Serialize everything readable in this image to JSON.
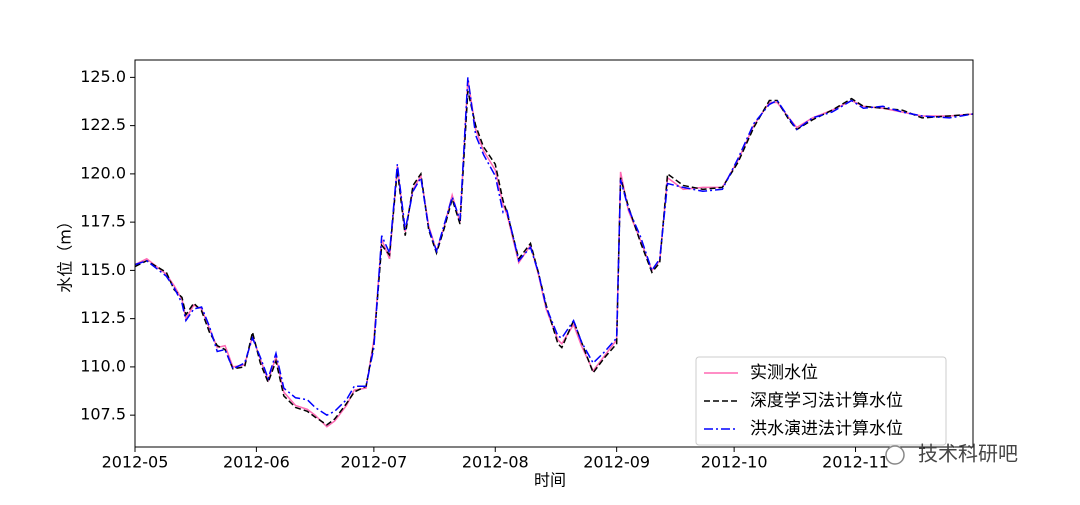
{
  "chart_data": {
    "type": "line",
    "xlabel": "时间",
    "ylabel": "水位（m）",
    "watermark": "技术科研吧",
    "x": [
      0,
      3,
      8,
      10,
      12,
      13,
      15,
      17,
      19,
      21,
      23,
      25,
      28,
      30,
      32,
      34,
      36,
      38,
      41,
      44,
      46,
      49,
      51,
      54,
      56,
      59,
      61,
      63,
      65,
      67,
      69,
      71,
      73,
      75,
      77,
      79,
      81,
      83,
      85,
      87,
      89,
      92,
      94,
      95,
      98,
      101,
      103,
      105,
      108,
      109,
      112,
      114,
      117,
      120,
      123,
      124,
      126,
      129,
      132,
      134,
      136,
      140,
      145,
      150,
      154,
      158,
      162,
      164,
      167,
      169,
      173,
      178,
      183,
      186,
      191,
      196,
      201,
      208,
      214
    ],
    "xlim": [
      0,
      214
    ],
    "xticks": [
      {
        "value": 0,
        "label": "2012-05"
      },
      {
        "value": 31,
        "label": "2012-06"
      },
      {
        "value": 61,
        "label": "2012-07"
      },
      {
        "value": 92,
        "label": "2012-08"
      },
      {
        "value": 123,
        "label": "2012-09"
      },
      {
        "value": 153,
        "label": "2012-10"
      },
      {
        "value": 184,
        "label": "2012-11"
      }
    ],
    "ylim": [
      105.85,
      125.9
    ],
    "yticks": [
      107.5,
      {
        "value": 110,
        "label": "110.0"
      },
      112.5,
      {
        "value": 115,
        "label": "115.0"
      },
      117.5,
      {
        "value": 120,
        "label": "120.0"
      },
      122.5,
      {
        "value": 125,
        "label": "125.0"
      }
    ],
    "legend": "lower right",
    "series": [
      {
        "name": "实测水位",
        "color": "#ff69b4",
        "dash": "solid",
        "values": [
          115.3,
          115.6,
          114.8,
          114.2,
          113.5,
          112.5,
          113.2,
          113.0,
          112.0,
          111.0,
          111.1,
          110.0,
          110.1,
          111.6,
          110.4,
          109.3,
          110.5,
          108.7,
          108.0,
          107.8,
          107.5,
          106.9,
          107.2,
          108.0,
          108.8,
          108.9,
          111.4,
          116.6,
          115.6,
          120.4,
          117.0,
          119.2,
          119.9,
          117.3,
          116.0,
          117.3,
          118.9,
          117.5,
          124.9,
          122.3,
          121.2,
          120.2,
          118.4,
          117.9,
          115.4,
          116.3,
          114.8,
          113.0,
          111.4,
          111.2,
          112.2,
          111.1,
          109.8,
          110.6,
          111.4,
          120.1,
          118.1,
          116.6,
          115.0,
          115.5,
          119.8,
          119.2,
          119.3,
          119.3,
          120.7,
          122.5,
          123.7,
          123.7,
          122.9,
          122.4,
          122.9,
          123.3,
          123.8,
          123.5,
          123.4,
          123.2,
          123.0,
          123.0,
          123.1
        ]
      },
      {
        "name": "深度学习法计算水位",
        "color": "#000000",
        "dash": "dashed",
        "values": [
          115.2,
          115.5,
          114.9,
          114.0,
          113.6,
          112.7,
          113.3,
          112.9,
          111.8,
          111.1,
          110.9,
          109.9,
          110.0,
          111.8,
          110.2,
          109.2,
          110.3,
          108.5,
          107.9,
          107.7,
          107.4,
          107.0,
          107.3,
          108.1,
          108.7,
          109.0,
          111.2,
          116.3,
          115.8,
          120.2,
          116.8,
          119.4,
          120.0,
          117.1,
          115.9,
          117.2,
          118.7,
          117.4,
          124.3,
          122.5,
          121.4,
          120.5,
          118.6,
          118.0,
          115.6,
          116.4,
          114.9,
          113.2,
          111.2,
          111.0,
          112.4,
          111.3,
          109.7,
          110.5,
          111.2,
          119.8,
          118.3,
          116.5,
          114.9,
          115.4,
          120.0,
          119.4,
          119.2,
          119.3,
          120.6,
          122.4,
          123.8,
          123.8,
          122.8,
          122.3,
          122.8,
          123.3,
          123.9,
          123.5,
          123.4,
          123.3,
          122.9,
          123.0,
          123.1
        ]
      },
      {
        "name": "洪水演进法计算水位",
        "color": "#0000ff",
        "dash": "dashdot",
        "values": [
          115.3,
          115.5,
          114.7,
          114.1,
          113.3,
          112.4,
          113.0,
          113.1,
          112.1,
          110.8,
          110.9,
          109.9,
          110.2,
          111.5,
          110.5,
          109.4,
          110.7,
          108.9,
          108.4,
          108.3,
          107.9,
          107.5,
          107.7,
          108.3,
          109.0,
          109.0,
          111.0,
          116.8,
          115.9,
          120.5,
          117.1,
          119.1,
          119.8,
          117.2,
          116.0,
          117.4,
          118.8,
          117.6,
          125.0,
          122.0,
          121.0,
          119.9,
          118.0,
          118.1,
          115.5,
          116.2,
          114.9,
          113.1,
          111.6,
          111.5,
          112.4,
          111.3,
          110.2,
          110.8,
          111.5,
          119.7,
          118.2,
          116.8,
          115.0,
          115.6,
          119.5,
          119.3,
          119.1,
          119.2,
          120.8,
          122.6,
          123.6,
          123.8,
          122.9,
          122.3,
          122.9,
          123.2,
          123.8,
          123.4,
          123.5,
          123.2,
          123.0,
          122.9,
          123.1
        ]
      }
    ]
  }
}
